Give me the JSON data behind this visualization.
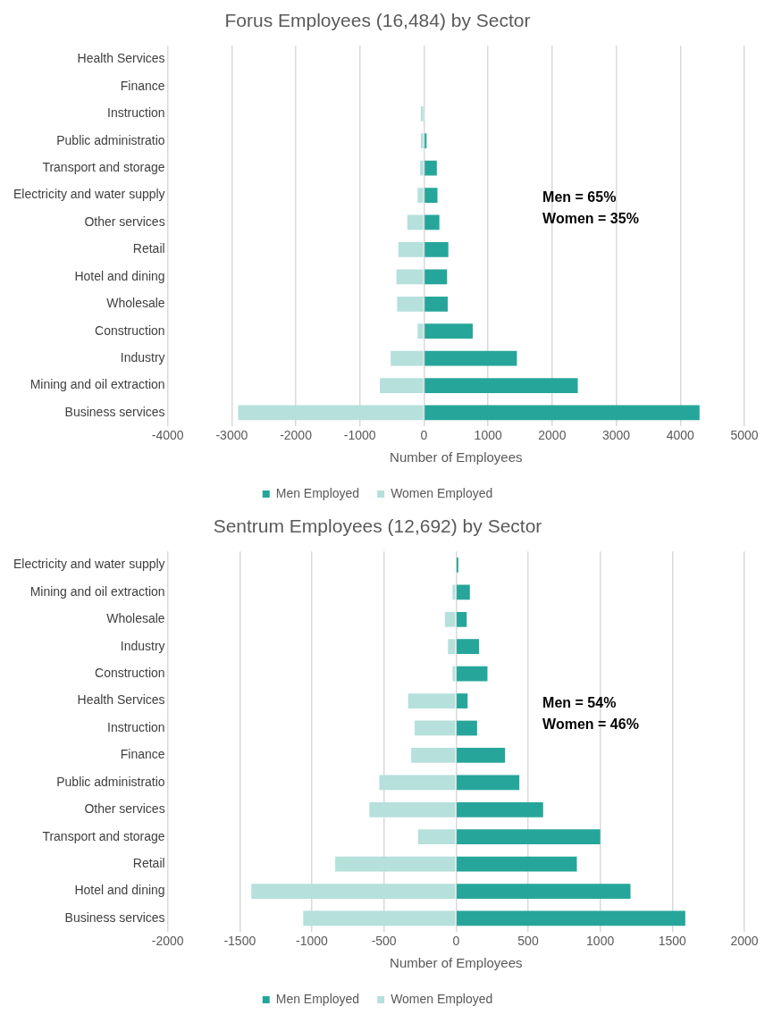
{
  "chart_data": [
    {
      "type": "bar",
      "orientation": "horizontal",
      "stacked": true,
      "title": "Forus Employees (16,484) by Sector",
      "xlabel": "Number of Employees",
      "categories": [
        "Health Services",
        "Finance",
        "Instruction",
        "Public administratio",
        "Transport and storage",
        "Electricity and water supply",
        "Other services",
        "Retail",
        "Hotel and dining",
        "Wholesale",
        "Construction",
        "Industry",
        "Mining and oil extraction",
        "Business services"
      ],
      "series": [
        {
          "name": "Men Employed",
          "color": "#26a69a",
          "values": [
            null,
            null,
            null,
            40,
            200,
            210,
            240,
            380,
            360,
            370,
            760,
            1450,
            2400,
            4300
          ]
        },
        {
          "name": "Women Employed",
          "color": "#b5e0dc",
          "values": [
            null,
            null,
            -50,
            -50,
            -60,
            -100,
            -260,
            -400,
            -430,
            -420,
            -100,
            -520,
            -690,
            -2900
          ]
        }
      ],
      "xlim": [
        -4000,
        5000
      ],
      "xticks": [
        -4000,
        -3000,
        -2000,
        -1000,
        0,
        1000,
        2000,
        3000,
        4000,
        5000
      ],
      "grid": "x",
      "legend": "bottom",
      "annotations": [
        "Men = 65%",
        "Women = 35%"
      ]
    },
    {
      "type": "bar",
      "orientation": "horizontal",
      "stacked": true,
      "title": "Sentrum Employees (12,692) by Sector",
      "xlabel": "Number of Employees",
      "categories": [
        "Electricity and water supply",
        "Mining and oil extraction",
        "Wholesale",
        "Industry",
        "Construction",
        "Health Services",
        "Instruction",
        "Finance",
        "Public administratio",
        "Other services",
        "Transport and storage",
        "Retail",
        "Hotel and dining",
        "Business services"
      ],
      "series": [
        {
          "name": "Men Employed",
          "color": "#26a69a",
          "values": [
            16,
            96,
            74,
            160,
            218,
            80,
            146,
            340,
            439,
            604,
            1000,
            838,
            1210,
            1590
          ]
        },
        {
          "name": "Women Employed",
          "color": "#b5e0dc",
          "values": [
            null,
            -24,
            -77,
            -56,
            -24,
            -332,
            -287,
            -311,
            -532,
            -601,
            -263,
            -838,
            -1420,
            -1060
          ]
        }
      ],
      "xlim": [
        -2000,
        2000
      ],
      "xticks": [
        -2000,
        -1500,
        -1000,
        -500,
        0,
        500,
        1000,
        1500,
        2000
      ],
      "grid": "x",
      "legend": "bottom",
      "annotations": [
        "Men = 54%",
        "Women = 46%"
      ]
    }
  ]
}
